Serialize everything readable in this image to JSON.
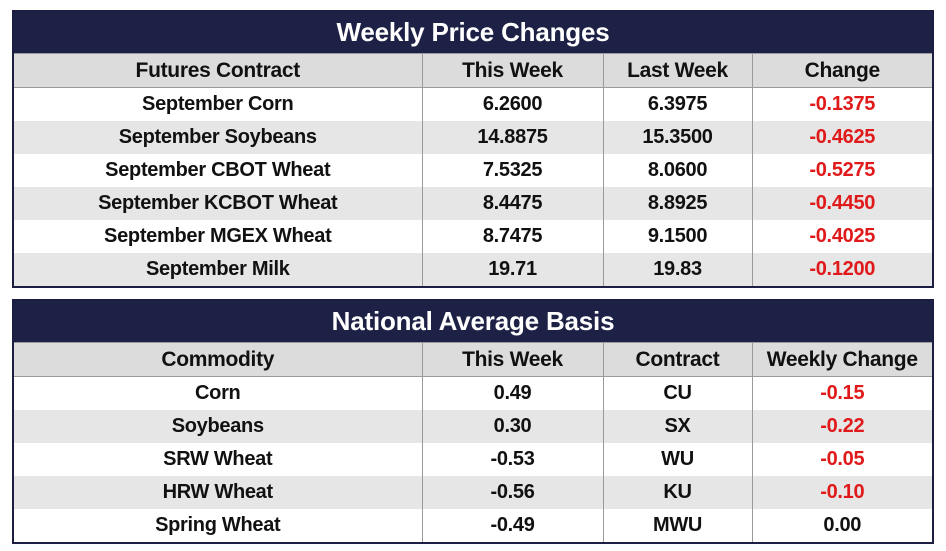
{
  "weekly": {
    "title": "Weekly Price Changes",
    "headers": [
      "Futures Contract",
      "This Week",
      "Last Week",
      "Change"
    ],
    "rows": [
      {
        "contract": "September Corn",
        "this_week": "6.2600",
        "last_week": "6.3975",
        "change": "-0.1375"
      },
      {
        "contract": "September Soybeans",
        "this_week": "14.8875",
        "last_week": "15.3500",
        "change": "-0.4625"
      },
      {
        "contract": "September CBOT Wheat",
        "this_week": "7.5325",
        "last_week": "8.0600",
        "change": "-0.5275"
      },
      {
        "contract": "September KCBOT Wheat",
        "this_week": "8.4475",
        "last_week": "8.8925",
        "change": "-0.4450"
      },
      {
        "contract": "September MGEX Wheat",
        "this_week": "8.7475",
        "last_week": "9.1500",
        "change": "-0.4025"
      },
      {
        "contract": "September Milk",
        "this_week": "19.71",
        "last_week": "19.83",
        "change": "-0.1200"
      }
    ]
  },
  "basis": {
    "title": "National Average Basis",
    "headers": [
      "Commodity",
      "This Week",
      "Contract",
      "Weekly Change"
    ],
    "rows": [
      {
        "commodity": "Corn",
        "this_week": "0.49",
        "contract": "CU",
        "weekly_change": "-0.15"
      },
      {
        "commodity": "Soybeans",
        "this_week": "0.30",
        "contract": "SX",
        "weekly_change": "-0.22"
      },
      {
        "commodity": "SRW Wheat",
        "this_week": "-0.53",
        "contract": "WU",
        "weekly_change": "-0.05"
      },
      {
        "commodity": "HRW Wheat",
        "this_week": "-0.56",
        "contract": "KU",
        "weekly_change": "-0.10"
      },
      {
        "commodity": "Spring Wheat",
        "this_week": "-0.49",
        "contract": "MWU",
        "weekly_change": "0.00"
      }
    ]
  },
  "colors": {
    "title_bg": "#1e2146",
    "header_bg": "#dcdcdc",
    "stripe_bg": "#e6e6e6",
    "negative_text": "#e01a1a"
  }
}
